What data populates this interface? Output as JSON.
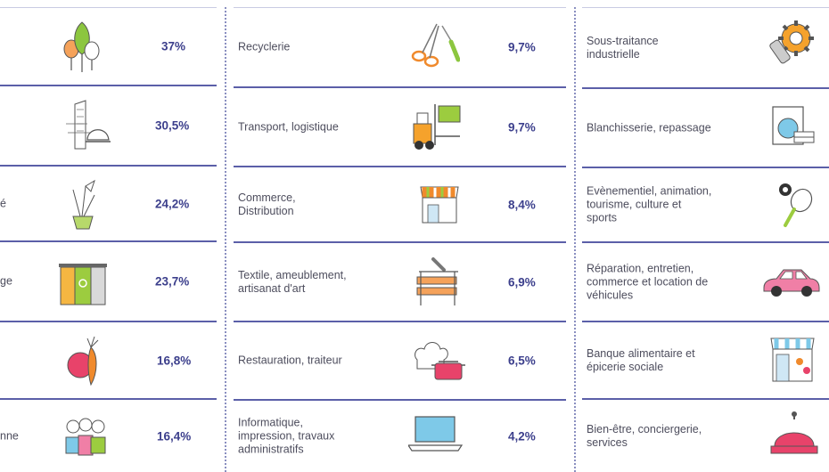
{
  "col1": {
    "rows": [
      {
        "label": "",
        "pct": "37%",
        "icon": "trees-icon"
      },
      {
        "label": "",
        "pct": "30,5%",
        "icon": "building-helmet-icon"
      },
      {
        "label": "é",
        "pct": "24,2%",
        "icon": "flower-pot-icon"
      },
      {
        "label": "ge",
        "pct": "23,7%",
        "icon": "recycling-bins-icon"
      },
      {
        "label": "",
        "pct": "16,8%",
        "icon": "apple-carrot-icon"
      },
      {
        "label": "nne",
        "pct": "16,4%",
        "icon": "people-group-icon"
      }
    ]
  },
  "col2": {
    "rows": [
      {
        "label": "Recyclerie",
        "pct": "9,7%",
        "icon": "scissors-screwdriver-icon"
      },
      {
        "label": "Transport, logistique",
        "pct": "9,7%",
        "icon": "forklift-icon"
      },
      {
        "label": "Commerce,\nDistribution",
        "pct": "8,4%",
        "icon": "shop-awning-icon"
      },
      {
        "label": "Textile, ameublement,\nartisanat d'art",
        "pct": "6,9%",
        "icon": "workbench-icon"
      },
      {
        "label": "Restauration, traiteur",
        "pct": "6,5%",
        "icon": "chef-hat-pot-icon"
      },
      {
        "label": "Informatique,\nimpression, travaux\nadministratifs",
        "pct": "4,2%",
        "icon": "laptop-icon"
      }
    ]
  },
  "col3": {
    "rows": [
      {
        "label": "Sous-traitance\nindustrielle",
        "icon": "gear-screw-icon"
      },
      {
        "label": "Blanchisserie, repassage",
        "icon": "washing-machine-icon"
      },
      {
        "label": "Evènementiel, animation,\ntourisme, culture et\nsports",
        "icon": "racket-ball-icon"
      },
      {
        "label": "Réparation, entretien,\ncommerce et location de\nvéhicules",
        "icon": "car-icon"
      },
      {
        "label": "Banque alimentaire et\népicerie sociale",
        "icon": "grocery-shop-icon"
      },
      {
        "label": "Bien-être, conciergerie,\nservices",
        "icon": "service-bell-icon"
      }
    ]
  },
  "colors": {
    "accent": "#3c3f8c",
    "rule": "#5b5fa8"
  }
}
